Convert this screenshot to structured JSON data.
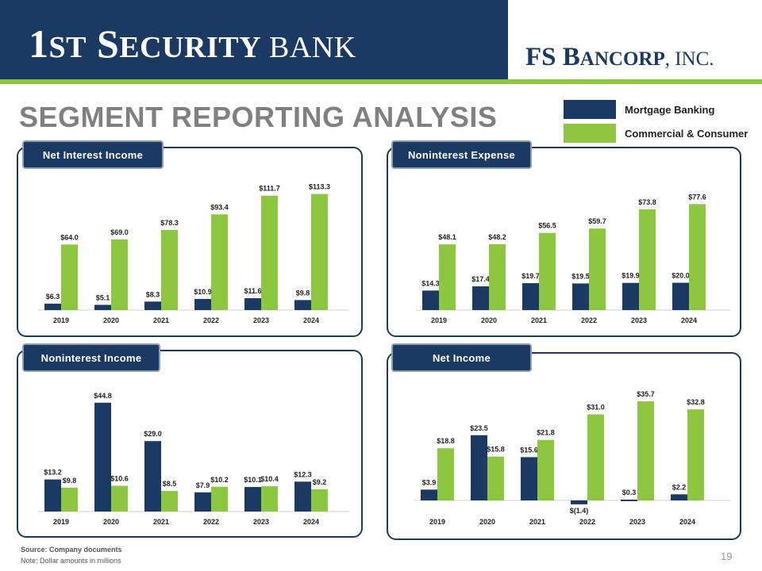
{
  "header": {
    "brand_left": {
      "part1": "1",
      "part2": "ST",
      "part3": " S",
      "part4": "ECURITY",
      "part5": " BANK"
    },
    "brand_right": {
      "part1": "FS B",
      "part2": "ANCORP",
      "part3": ", INC."
    }
  },
  "page_title": "SEGMENT REPORTING ANALYSIS",
  "legend": [
    {
      "label": "Mortgage Banking",
      "color": "#1b3a63"
    },
    {
      "label": "Commercial & Consumer",
      "color": "#8dc63f"
    }
  ],
  "colors": {
    "mortgage": "#1b3a63",
    "commercial": "#8dc63f",
    "axis": "#d0d0d0"
  },
  "chart_data": [
    {
      "type": "bar",
      "title": "Net Interest Income",
      "categories": [
        "2019",
        "2020",
        "2021",
        "2022",
        "2023",
        "2024"
      ],
      "series": [
        {
          "name": "Mortgage Banking",
          "values": [
            6.3,
            5.1,
            8.3,
            10.9,
            11.6,
            9.8
          ],
          "labels": [
            "$6.3",
            "$5.1",
            "$8.3",
            "$10.9",
            "$11.6",
            "$9.8"
          ]
        },
        {
          "name": "Commercial & Consumer",
          "values": [
            64.0,
            69.0,
            78.3,
            93.4,
            111.7,
            113.3
          ],
          "labels": [
            "$64.0",
            "$69.0",
            "$78.3",
            "$93.4",
            "$111.7",
            "$113.3"
          ]
        }
      ],
      "ylim": [
        0,
        120
      ]
    },
    {
      "type": "bar",
      "title": "Noninterest Expense",
      "categories": [
        "2019",
        "2020",
        "2021",
        "2022",
        "2023",
        "2024"
      ],
      "series": [
        {
          "name": "Mortgage Banking",
          "values": [
            14.3,
            17.4,
            19.7,
            19.5,
            19.9,
            20.0
          ],
          "labels": [
            "$14.3",
            "$17.4",
            "$19.7",
            "$19.5",
            "$19.9",
            "$20.0"
          ]
        },
        {
          "name": "Commercial & Consumer",
          "values": [
            48.1,
            48.2,
            56.5,
            59.7,
            73.8,
            77.6
          ],
          "labels": [
            "$48.1",
            "$48.2",
            "$56.5",
            "$59.7",
            "$73.8",
            "$77.6"
          ]
        }
      ],
      "ylim": [
        0,
        90
      ]
    },
    {
      "type": "bar",
      "title": "Noninterest Income",
      "categories": [
        "2019",
        "2020",
        "2021",
        "2022",
        "2023",
        "2024"
      ],
      "series": [
        {
          "name": "Mortgage Banking",
          "values": [
            13.2,
            44.8,
            29.0,
            7.9,
            10.1,
            12.3
          ],
          "labels": [
            "$13.2",
            "$44.8",
            "$29.0",
            "$7.9",
            "$10.1",
            "$12.3"
          ]
        },
        {
          "name": "Commercial & Consumer",
          "values": [
            9.8,
            10.6,
            8.5,
            10.2,
            10.4,
            9.2
          ],
          "labels": [
            "$9.8",
            "$10.6",
            "$8.5",
            "$10.2",
            "$10.4",
            "$9.2"
          ]
        }
      ],
      "ylim": [
        0,
        48
      ]
    },
    {
      "type": "bar",
      "title": "Net Income",
      "categories": [
        "2019",
        "2020",
        "2021",
        "2022",
        "2023",
        "2024"
      ],
      "series": [
        {
          "name": "Mortgage Banking",
          "values": [
            3.9,
            23.5,
            15.6,
            -1.4,
            0.3,
            2.2
          ],
          "labels": [
            "$3.9",
            "$23.5",
            "$15.6",
            "$(1.4)",
            "$0.3",
            "$2.2"
          ]
        },
        {
          "name": "Commercial & Consumer",
          "values": [
            18.8,
            15.8,
            21.8,
            31.0,
            35.7,
            32.8
          ],
          "labels": [
            "$18.8",
            "$15.8",
            "$21.8",
            "$31.0",
            "$35.7",
            "$32.8"
          ]
        }
      ],
      "ylim": [
        -4,
        38
      ]
    }
  ],
  "footer": {
    "source": "Source: Company documents",
    "note": "Note: Dollar amounts in millions",
    "page_number": "19"
  }
}
